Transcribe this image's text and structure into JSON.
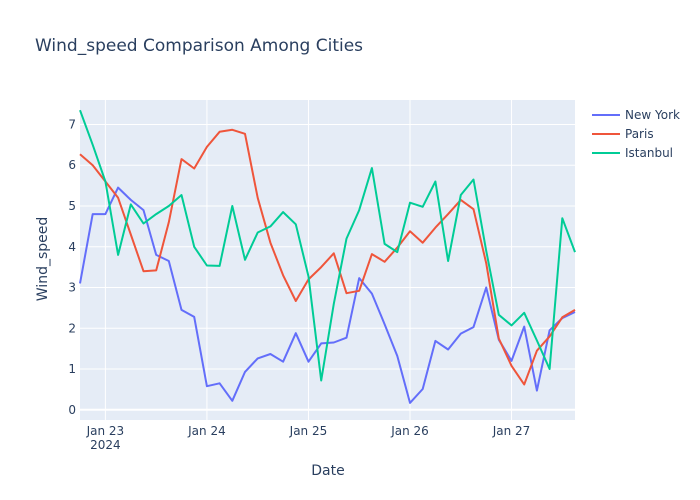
{
  "chart_data": {
    "type": "line",
    "title": "Wind_speed Comparison Among Cities",
    "xlabel": "Date",
    "ylabel": "Wind_speed",
    "x_start": "2024-01-22T18:00",
    "x_step_hours": 3,
    "x_tick_labels": [
      {
        "date": "2024-01-23T00:00",
        "label": "Jan 23",
        "sublabel": "2024"
      },
      {
        "date": "2024-01-24T00:00",
        "label": "Jan 24",
        "sublabel": ""
      },
      {
        "date": "2024-01-25T00:00",
        "label": "Jan 25",
        "sublabel": ""
      },
      {
        "date": "2024-01-26T00:00",
        "label": "Jan 26",
        "sublabel": ""
      },
      {
        "date": "2024-01-27T00:00",
        "label": "Jan 27",
        "sublabel": ""
      }
    ],
    "xlim": [
      "2024-01-22T18:00",
      "2024-01-27T15:00"
    ],
    "ylim": [
      -0.25,
      7.6
    ],
    "y_ticks": [
      0,
      1,
      2,
      3,
      4,
      5,
      6,
      7
    ],
    "grid": true,
    "legend_position": "top-right",
    "series": [
      {
        "name": "New York",
        "color": "#636efa",
        "values": [
          3.1,
          4.8,
          4.8,
          5.45,
          5.15,
          4.9,
          3.8,
          3.65,
          2.45,
          2.28,
          0.58,
          0.65,
          0.22,
          0.93,
          1.26,
          1.37,
          1.18,
          1.88,
          1.18,
          1.63,
          1.65,
          1.77,
          3.23,
          2.85,
          2.1,
          1.32,
          0.17,
          0.51,
          1.69,
          1.48,
          1.87,
          2.03,
          3.0,
          1.72,
          1.2,
          2.04,
          0.47,
          1.95,
          2.25,
          2.4
        ]
      },
      {
        "name": "Paris",
        "color": "#ef553b",
        "values": [
          6.27,
          6.0,
          5.6,
          5.2,
          4.3,
          3.4,
          3.42,
          4.6,
          6.15,
          5.92,
          6.45,
          6.82,
          6.87,
          6.77,
          5.2,
          4.1,
          3.3,
          2.67,
          3.2,
          3.5,
          3.84,
          2.86,
          2.92,
          3.82,
          3.63,
          3.98,
          4.38,
          4.1,
          4.47,
          4.8,
          5.15,
          4.92,
          3.6,
          1.75,
          1.08,
          0.62,
          1.45,
          1.8,
          2.27,
          2.45
        ]
      },
      {
        "name": "Istanbul",
        "color": "#00cc96",
        "values": [
          7.35,
          6.5,
          5.6,
          3.8,
          5.04,
          4.57,
          4.8,
          5.0,
          5.27,
          4.0,
          3.54,
          3.53,
          5.0,
          3.68,
          4.35,
          4.5,
          4.85,
          4.55,
          3.27,
          0.72,
          2.6,
          4.2,
          4.9,
          5.93,
          4.07,
          3.87,
          5.08,
          4.98,
          5.6,
          3.65,
          5.27,
          5.65,
          3.9,
          2.33,
          2.07,
          2.38,
          1.7,
          1.0,
          4.7,
          3.87
        ]
      }
    ]
  }
}
